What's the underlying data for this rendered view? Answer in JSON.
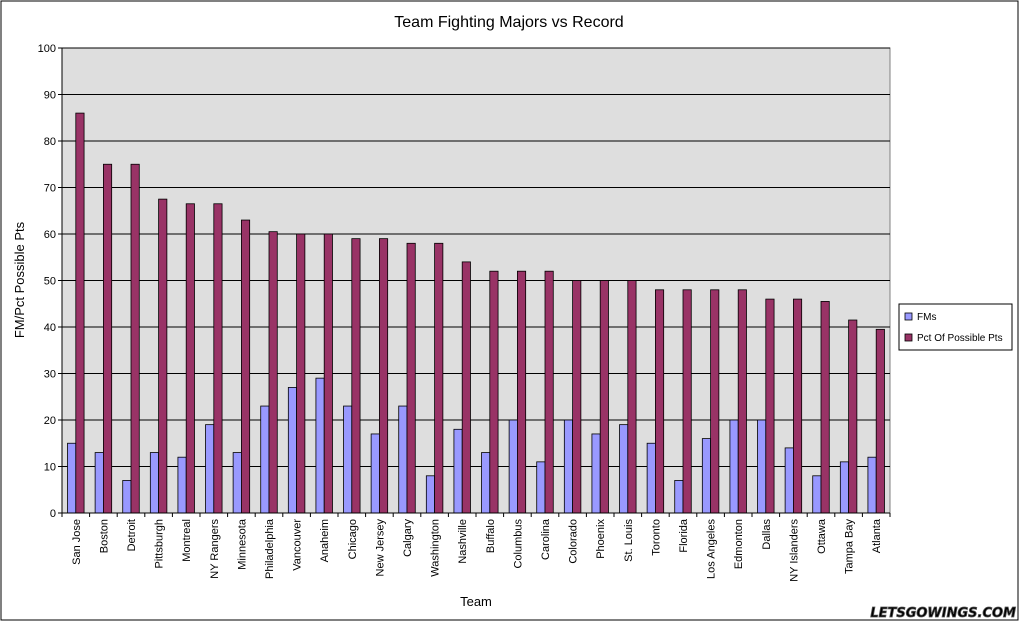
{
  "chart_data": {
    "type": "bar",
    "title": "Team Fighting Majors vs Record",
    "xlabel": "Team",
    "ylabel": "FM/Pct Possible Pts",
    "ylim": [
      0,
      100
    ],
    "yticks": [
      "0",
      "10",
      "20",
      "30",
      "40",
      "50",
      "60",
      "70",
      "80",
      "90",
      "100"
    ],
    "grid": true,
    "legend_position": "right",
    "categories": [
      "San Jose",
      "Boston",
      "Detroit",
      "Pittsburgh",
      "Montreal",
      "NY Rangers",
      "Minnesota",
      "Philadelphia",
      "Vancouver",
      "Anaheim",
      "Chicago",
      "New Jersey",
      "Calgary",
      "Washington",
      "Nashville",
      "Buffalo",
      "Columbus",
      "Carolina",
      "Colorado",
      "Phoenix",
      "St. Louis",
      "Toronto",
      "Florida",
      "Los Angeles",
      "Edmonton",
      "Dallas",
      "NY Islanders",
      "Ottawa",
      "Tampa Bay",
      "Atlanta"
    ],
    "series": [
      {
        "name": "FMs",
        "color": "#9999ff",
        "values": [
          15,
          13,
          7,
          13,
          12,
          19,
          13,
          23,
          27,
          29,
          23,
          17,
          23,
          8,
          18,
          13,
          20,
          11,
          20,
          17,
          19,
          15,
          7,
          16,
          20,
          20,
          14,
          8,
          11,
          12
        ]
      },
      {
        "name": "Pct Of Possible Pts",
        "color": "#993366",
        "values": [
          86,
          75,
          75,
          67.5,
          66.5,
          66.5,
          63,
          60.5,
          60,
          60,
          59,
          59,
          58,
          58,
          54,
          52,
          52,
          52,
          50,
          50,
          50,
          48,
          48,
          48,
          48,
          46,
          46,
          45.5,
          41.5,
          39.5
        ]
      }
    ]
  },
  "watermark": "LETSGOWINGS.COM",
  "colors": {
    "plot_bg": "#dedede",
    "outer_bg": "#ffffff",
    "gridline": "#000000"
  }
}
